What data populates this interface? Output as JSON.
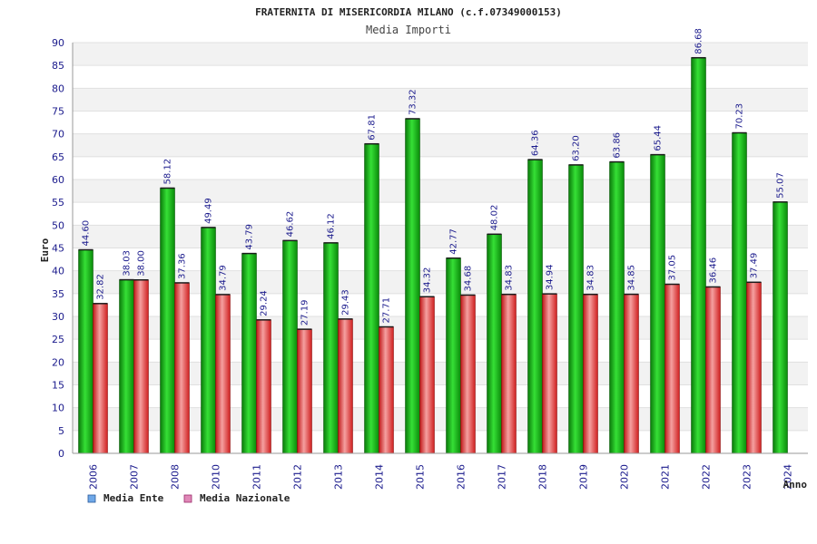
{
  "chart_data": {
    "type": "bar",
    "title": "FRATERNITA DI MISERICORDIA MILANO (c.f.07349000153)",
    "subtitle": "Media Importi",
    "xlabel": "Anno",
    "ylabel": "Euro",
    "ylim": [
      0,
      90
    ],
    "ytick_step": 5,
    "grid": "horizontal bands",
    "legend_position": "bottom-left",
    "categories": [
      "2006",
      "2007",
      "2008",
      "2010",
      "2011",
      "2012",
      "2013",
      "2014",
      "2015",
      "2016",
      "2017",
      "2018",
      "2019",
      "2020",
      "2021",
      "2022",
      "2023",
      "2024"
    ],
    "series": [
      {
        "name": "Media Ente",
        "color": "#22b822",
        "legend_color": "#6fa8e8",
        "values": [
          44.6,
          38.03,
          58.12,
          49.49,
          43.79,
          46.62,
          46.12,
          67.81,
          73.32,
          42.77,
          48.02,
          64.36,
          63.2,
          63.86,
          65.44,
          86.68,
          70.23,
          55.07
        ],
        "labels": [
          "44.60",
          "38.03",
          "58.12",
          "49.49",
          "43.79",
          "46.62",
          "46.12",
          "67.81",
          "73.32",
          "42.77",
          "48.02",
          "64.36",
          "63.20",
          "63.86",
          "65.44",
          "86.68",
          "70.23",
          "55.07"
        ]
      },
      {
        "name": "Media Nazionale",
        "color": "#e83a3a",
        "legend_color": "#e088b8",
        "values": [
          32.82,
          38.0,
          37.36,
          34.79,
          29.24,
          27.19,
          29.43,
          27.71,
          34.32,
          34.68,
          34.83,
          34.94,
          34.83,
          34.85,
          37.05,
          36.46,
          37.49,
          null
        ],
        "labels": [
          "32.82",
          "38.00",
          "37.36",
          "34.79",
          "29.24",
          "27.19",
          "29.43",
          "27.71",
          "34.32",
          "34.68",
          "34.83",
          "34.94",
          "34.83",
          "34.85",
          "37.05",
          "36.46",
          "37.49",
          null
        ]
      }
    ]
  }
}
